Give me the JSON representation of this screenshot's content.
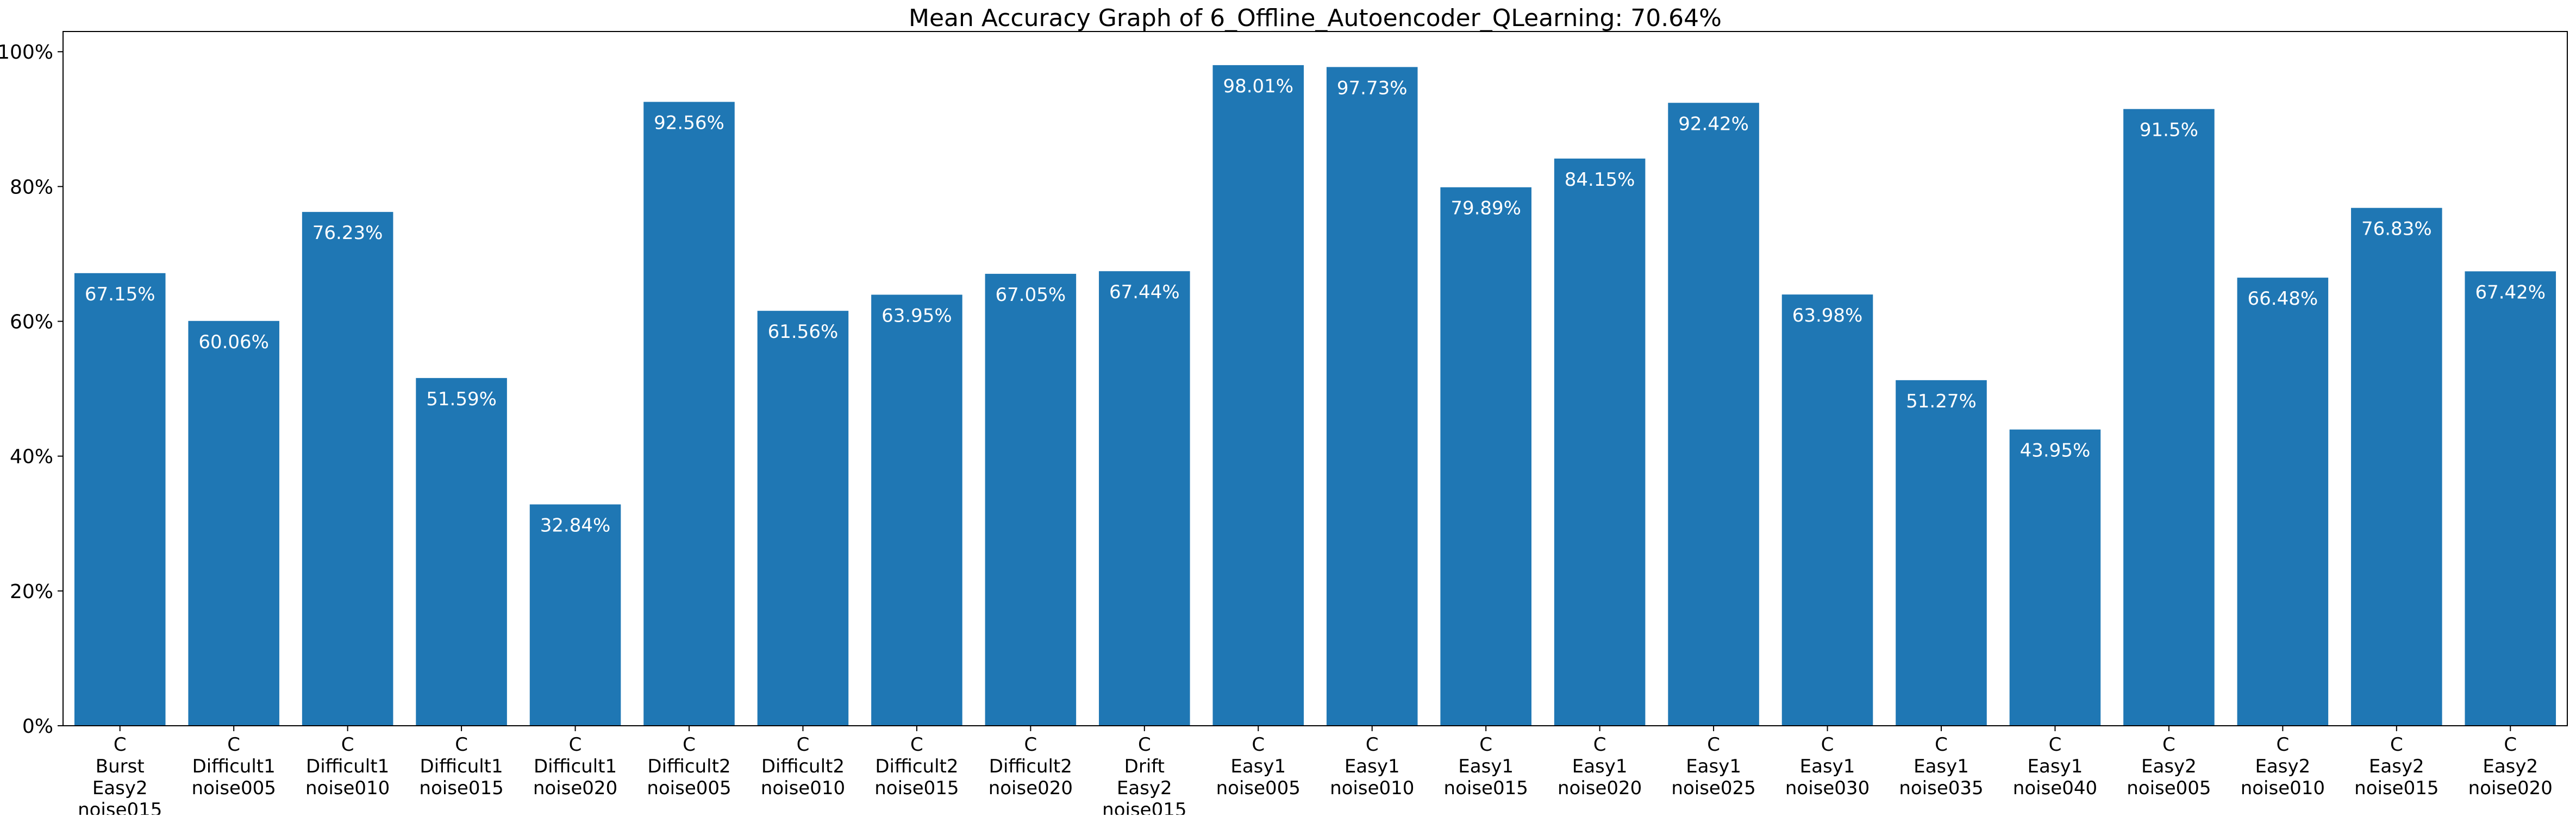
{
  "chart_data": {
    "type": "bar",
    "title": "Mean Accuracy Graph of 6_Offline_Autoencoder_QLearning: 70.64%",
    "xlabel": "",
    "ylabel": "",
    "ylim": [
      0,
      103
    ],
    "yticks": [
      0,
      20,
      40,
      60,
      80,
      100
    ],
    "ytick_labels": [
      "0%",
      "20%",
      "40%",
      "60%",
      "80%",
      "100%"
    ],
    "grid": false,
    "bar_color": "#1f77b4",
    "label_color": "#ffffff",
    "categories": [
      [
        "C",
        "Burst",
        "Easy2",
        "noise015"
      ],
      [
        "C",
        "Difficult1",
        "noise005"
      ],
      [
        "C",
        "Difficult1",
        "noise010"
      ],
      [
        "C",
        "Difficult1",
        "noise015"
      ],
      [
        "C",
        "Difficult1",
        "noise020"
      ],
      [
        "C",
        "Difficult2",
        "noise005"
      ],
      [
        "C",
        "Difficult2",
        "noise010"
      ],
      [
        "C",
        "Difficult2",
        "noise015"
      ],
      [
        "C",
        "Difficult2",
        "noise020"
      ],
      [
        "C",
        "Drift",
        "Easy2",
        "noise015"
      ],
      [
        "C",
        "Easy1",
        "noise005"
      ],
      [
        "C",
        "Easy1",
        "noise010"
      ],
      [
        "C",
        "Easy1",
        "noise015"
      ],
      [
        "C",
        "Easy1",
        "noise020"
      ],
      [
        "C",
        "Easy1",
        "noise025"
      ],
      [
        "C",
        "Easy1",
        "noise030"
      ],
      [
        "C",
        "Easy1",
        "noise035"
      ],
      [
        "C",
        "Easy1",
        "noise040"
      ],
      [
        "C",
        "Easy2",
        "noise005"
      ],
      [
        "C",
        "Easy2",
        "noise010"
      ],
      [
        "C",
        "Easy2",
        "noise015"
      ],
      [
        "C",
        "Easy2",
        "noise020"
      ]
    ],
    "values": [
      67.15,
      60.06,
      76.23,
      51.59,
      32.84,
      92.56,
      61.56,
      63.95,
      67.05,
      67.44,
      98.01,
      97.73,
      79.89,
      84.15,
      92.42,
      63.98,
      51.27,
      43.95,
      91.5,
      66.48,
      76.83,
      67.42
    ],
    "value_labels": [
      "67.15%",
      "60.06%",
      "76.23%",
      "51.59%",
      "32.84%",
      "92.56%",
      "61.56%",
      "63.95%",
      "67.05%",
      "67.44%",
      "98.01%",
      "97.73%",
      "79.89%",
      "84.15%",
      "92.42%",
      "63.98%",
      "51.27%",
      "43.95%",
      "91.5%",
      "66.48%",
      "76.83%",
      "67.42%"
    ]
  }
}
